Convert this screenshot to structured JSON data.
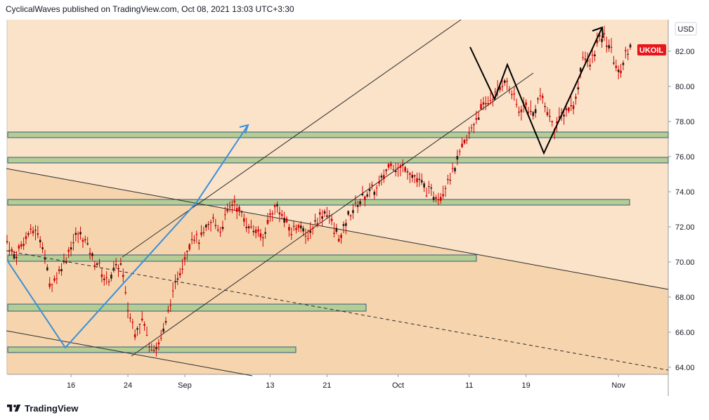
{
  "header": {
    "publisher": "CyclicalWaves published on TradingView.com, Oct 08, 2021 13:03 UTC+3:30"
  },
  "footer": {
    "brand": "TradingView",
    "logo_icon": "tradingview-logo-icon"
  },
  "colors": {
    "background": "#fbe3c9",
    "candle": "#d40000",
    "zone_fill": "#b5cc93",
    "zone_border": "#2f5d80",
    "channel": "#2b2b2b",
    "projection": "#000000",
    "blue_path": "#3a8fd9",
    "symbol_badge": "#e8161c"
  },
  "chart_data": {
    "type": "candlestick",
    "symbol": "UKOIL",
    "currency": "USD",
    "ylim": [
      63.6,
      83.8
    ],
    "y_ticks": [
      64,
      66,
      68,
      70,
      72,
      74,
      76,
      78,
      80,
      82
    ],
    "y_tick_labels": [
      "64.00",
      "66.00",
      "68.00",
      "70.00",
      "72.00",
      "74.00",
      "76.00",
      "78.00",
      "80.00",
      "82.00"
    ],
    "x_range": [
      "2021-08-07",
      "2021-11-08"
    ],
    "x_ticks": [
      {
        "date": "2021-08-16",
        "label": "16"
      },
      {
        "date": "2021-08-24",
        "label": "24"
      },
      {
        "date": "2021-09-01",
        "label": "Sep"
      },
      {
        "date": "2021-09-13",
        "label": "13"
      },
      {
        "date": "2021-09-21",
        "label": "21"
      },
      {
        "date": "2021-10-01",
        "label": "Oct"
      },
      {
        "date": "2021-10-11",
        "label": "11"
      },
      {
        "date": "2021-10-19",
        "label": "19"
      },
      {
        "date": "2021-11-01",
        "label": "Nov"
      }
    ],
    "price_path": [
      [
        "2021-08-07",
        71.2
      ],
      [
        "2021-08-08",
        70.3
      ],
      [
        "2021-08-09",
        70.9
      ],
      [
        "2021-08-10",
        71.6
      ],
      [
        "2021-08-11",
        71.8
      ],
      [
        "2021-08-12",
        71.1
      ],
      [
        "2021-08-13",
        68.6
      ],
      [
        "2021-08-14",
        69.3
      ],
      [
        "2021-08-15",
        70.0
      ],
      [
        "2021-08-16",
        70.9
      ],
      [
        "2021-08-17",
        71.6
      ],
      [
        "2021-08-18",
        71.2
      ],
      [
        "2021-08-19",
        70.2
      ],
      [
        "2021-08-20",
        69.8
      ],
      [
        "2021-08-21",
        68.8
      ],
      [
        "2021-08-22",
        69.5
      ],
      [
        "2021-08-23",
        69.9
      ],
      [
        "2021-08-24",
        67.3
      ],
      [
        "2021-08-25",
        66.1
      ],
      [
        "2021-08-26",
        66.7
      ],
      [
        "2021-08-27",
        65.4
      ],
      [
        "2021-08-28",
        65.1
      ],
      [
        "2021-08-29",
        66.0
      ],
      [
        "2021-08-30",
        67.7
      ],
      [
        "2021-08-31",
        69.2
      ],
      [
        "2021-09-01",
        70.3
      ],
      [
        "2021-09-02",
        71.5
      ],
      [
        "2021-09-03",
        71.2
      ],
      [
        "2021-09-04",
        71.8
      ],
      [
        "2021-09-05",
        72.3
      ],
      [
        "2021-09-06",
        71.9
      ],
      [
        "2021-09-07",
        72.8
      ],
      [
        "2021-09-08",
        73.4
      ],
      [
        "2021-09-09",
        72.6
      ],
      [
        "2021-09-10",
        72.1
      ],
      [
        "2021-09-11",
        71.8
      ],
      [
        "2021-09-12",
        71.3
      ],
      [
        "2021-09-13",
        72.7
      ],
      [
        "2021-09-14",
        73.2
      ],
      [
        "2021-09-15",
        72.4
      ],
      [
        "2021-09-16",
        71.7
      ],
      [
        "2021-09-17",
        72.2
      ],
      [
        "2021-09-18",
        71.4
      ],
      [
        "2021-09-19",
        72.0
      ],
      [
        "2021-09-20",
        72.6
      ],
      [
        "2021-09-21",
        72.9
      ],
      [
        "2021-09-22",
        71.8
      ],
      [
        "2021-09-23",
        71.4
      ],
      [
        "2021-09-24",
        72.6
      ],
      [
        "2021-09-25",
        73.1
      ],
      [
        "2021-09-26",
        73.7
      ],
      [
        "2021-09-27",
        74.0
      ],
      [
        "2021-09-28",
        74.1
      ],
      [
        "2021-09-29",
        74.9
      ],
      [
        "2021-09-30",
        75.7
      ],
      [
        "2021-10-01",
        75.2
      ],
      [
        "2021-10-02",
        75.5
      ],
      [
        "2021-10-03",
        74.9
      ],
      [
        "2021-10-04",
        74.6
      ],
      [
        "2021-10-05",
        74.1
      ],
      [
        "2021-10-06",
        73.8
      ],
      [
        "2021-10-07",
        73.7
      ],
      [
        "2021-10-08",
        74.8
      ],
      [
        "2021-10-09",
        75.4
      ],
      [
        "2021-10-10",
        76.4
      ],
      [
        "2021-10-11",
        77.3
      ],
      [
        "2021-10-12",
        78.2
      ],
      [
        "2021-10-13",
        78.9
      ],
      [
        "2021-10-14",
        79.3
      ],
      [
        "2021-10-15",
        79.7
      ],
      [
        "2021-10-16",
        80.4
      ],
      [
        "2021-10-17",
        79.6
      ],
      [
        "2021-10-18",
        78.6
      ],
      [
        "2021-10-19",
        79.0
      ],
      [
        "2021-10-20",
        78.4
      ],
      [
        "2021-10-21",
        79.5
      ],
      [
        "2021-10-22",
        78.6
      ],
      [
        "2021-10-23",
        77.7
      ],
      [
        "2021-10-24",
        78.3
      ],
      [
        "2021-10-25",
        78.8
      ],
      [
        "2021-10-26",
        79.2
      ],
      [
        "2021-10-27",
        81.8
      ],
      [
        "2021-10-28",
        81.2
      ],
      [
        "2021-10-29",
        82.5
      ],
      [
        "2021-10-30",
        82.8
      ],
      [
        "2021-10-31",
        82.1
      ],
      [
        "2021-11-01",
        80.6
      ],
      [
        "2021-11-02",
        81.8
      ],
      [
        "2021-11-03",
        82.8
      ]
    ]
  }
}
